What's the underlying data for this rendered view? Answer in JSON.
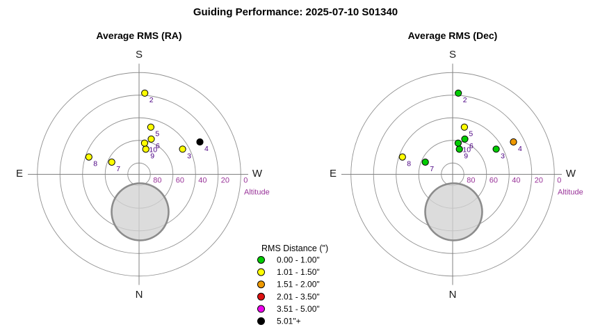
{
  "header": {
    "title": "Guiding Performance: 2025-07-10 S01340"
  },
  "chart_data": {
    "type": "scatter",
    "projection": "polar-altaz",
    "title": "Guiding Performance: 2025-07-10 S01340",
    "axes": {
      "radial_label": "Altitude",
      "radial_ticks": [
        "80",
        "60",
        "40",
        "20",
        "0"
      ],
      "alt_range": [
        0,
        90
      ],
      "compass": {
        "top": "S",
        "bottom": "N",
        "left": "E",
        "right": "W"
      },
      "grid": true
    },
    "charts": [
      {
        "id": "ra",
        "title": "Average RMS (RA)",
        "points": [
          {
            "label": "2",
            "alt": 18,
            "az": 184,
            "bin": "1.01 - 1.50\""
          },
          {
            "label": "3",
            "alt": 45.5,
            "az": 240,
            "bin": "1.01 - 1.50\""
          },
          {
            "label": "4",
            "alt": 29,
            "az": 242,
            "bin": "5.01\"+"
          },
          {
            "label": "5",
            "alt": 47,
            "az": 194,
            "bin": "1.01 - 1.50\""
          },
          {
            "label": "6",
            "alt": 57,
            "az": 199,
            "bin": "1.01 - 1.50\""
          },
          {
            "label": "7",
            "alt": 63.5,
            "az": 114,
            "bin": "1.01 - 1.50\""
          },
          {
            "label": "8",
            "alt": 43,
            "az": 109,
            "bin": "1.01 - 1.50\""
          },
          {
            "label": "9",
            "alt": 67,
            "az": 195,
            "bin": "1.01 - 1.50\""
          },
          {
            "label": "10",
            "alt": 62,
            "az": 190,
            "bin": "1.01 - 1.50\""
          }
        ]
      },
      {
        "id": "dec",
        "title": "Average RMS (Dec)",
        "points": [
          {
            "label": "2",
            "alt": 18,
            "az": 184,
            "bin": "0.00 - 1.00\""
          },
          {
            "label": "3",
            "alt": 45.5,
            "az": 240,
            "bin": "0.00 - 1.00\""
          },
          {
            "label": "4",
            "alt": 29,
            "az": 242,
            "bin": "1.51 - 2.00\""
          },
          {
            "label": "5",
            "alt": 47,
            "az": 194,
            "bin": "1.01 - 1.50\""
          },
          {
            "label": "6",
            "alt": 57,
            "az": 199,
            "bin": "0.00 - 1.00\""
          },
          {
            "label": "7",
            "alt": 63.5,
            "az": 114,
            "bin": "0.00 - 1.00\""
          },
          {
            "label": "8",
            "alt": 43,
            "az": 109,
            "bin": "1.01 - 1.50\""
          },
          {
            "label": "9",
            "alt": 67,
            "az": 195,
            "bin": "0.00 - 1.00\""
          },
          {
            "label": "10",
            "alt": 62,
            "az": 190,
            "bin": "0.00 - 1.00\""
          }
        ]
      }
    ],
    "legend": {
      "title": "RMS Distance (\")",
      "position": "bottom-center",
      "bins": [
        {
          "label": "0.00 - 1.00\"",
          "color": "#00CC00"
        },
        {
          "label": "1.01 - 1.50\"",
          "color": "#FFFF00"
        },
        {
          "label": "1.51 - 2.00\"",
          "color": "#EE9900"
        },
        {
          "label": "2.01 - 3.50\"",
          "color": "#DD1111"
        },
        {
          "label": "3.51 - 5.00\"",
          "color": "#EE00EE"
        },
        {
          "label": "5.01\"+",
          "color": "#000000"
        }
      ]
    },
    "moon_disc": {
      "alt": 56.8,
      "az": 358.4,
      "radius_px": 41,
      "fill": "#D2D2D2",
      "stroke": "#8C8C8C"
    },
    "colors": {
      "grid": "#909090",
      "axis": "#808080",
      "tick_text": "#993399",
      "point_label": "#4B0082",
      "point_stroke": "#000000",
      "text": "#000000"
    }
  }
}
